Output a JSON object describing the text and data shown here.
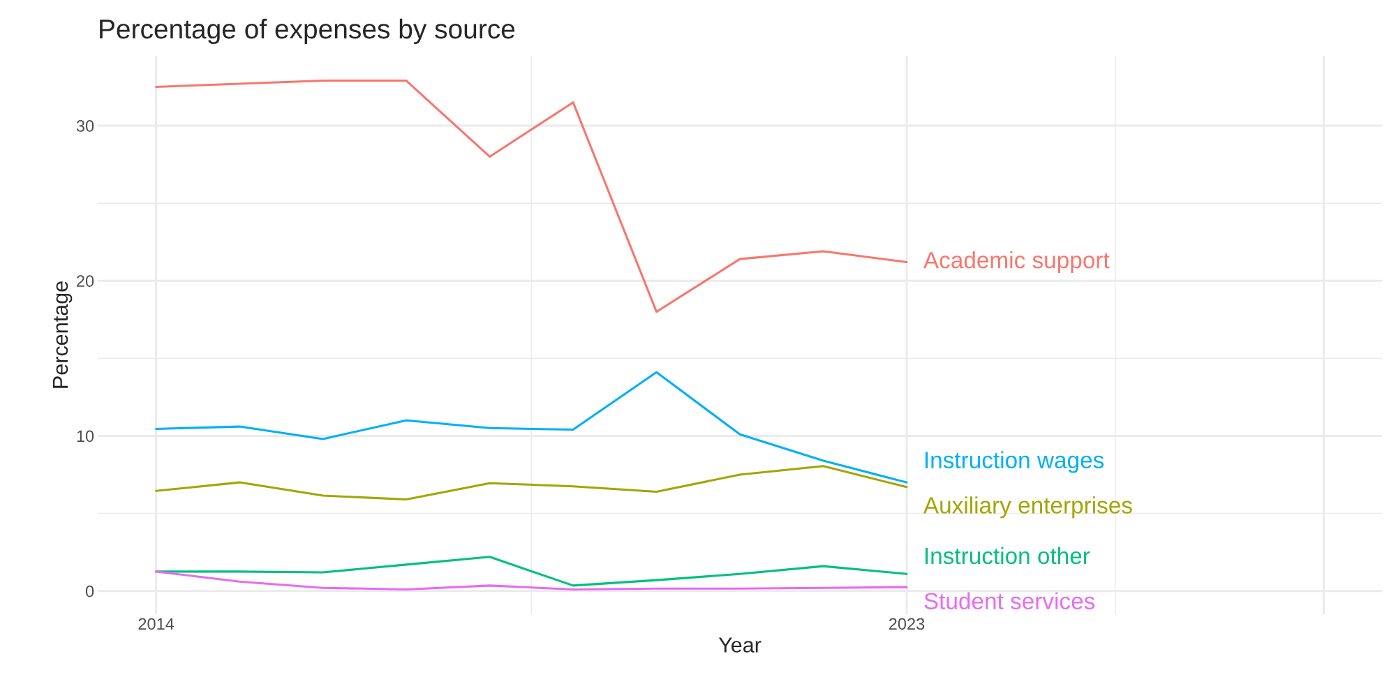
{
  "chart_data": {
    "type": "line",
    "title": "Percentage of expenses by source",
    "xlabel": "Year",
    "ylabel": "Percentage",
    "x": [
      2014,
      2015,
      2016,
      2017,
      2018,
      2019,
      2020,
      2021,
      2022,
      2023
    ],
    "xlim": [
      2013.3,
      2028.7
    ],
    "xticks": [
      2014,
      2023,
      {
        "value": 2028,
        "label": null
      }
    ],
    "ylim": [
      -1.5,
      34.5
    ],
    "yticks": [
      0,
      10,
      20,
      30
    ],
    "grid": true,
    "legend": false,
    "series": [
      {
        "name": "Academic support",
        "color": "#F8766D",
        "values": [
          32.5,
          32.7,
          32.9,
          32.9,
          28.0,
          31.5,
          18.0,
          21.4,
          21.9,
          21.2
        ]
      },
      {
        "name": "Auxiliary enterprises",
        "color": "#A3A500",
        "values": [
          6.45,
          7.0,
          6.15,
          5.9,
          6.95,
          6.75,
          6.4,
          7.5,
          8.05,
          6.7
        ]
      },
      {
        "name": "Instruction other",
        "color": "#00BF7D",
        "values": [
          1.25,
          1.25,
          1.2,
          1.7,
          2.2,
          0.35,
          0.7,
          1.1,
          1.6,
          1.1
        ]
      },
      {
        "name": "Instruction wages",
        "color": "#00B0F6",
        "values": [
          10.45,
          10.6,
          9.8,
          11.0,
          10.5,
          10.4,
          14.1,
          10.1,
          8.4,
          7.0
        ]
      },
      {
        "name": "Student services",
        "color": "#E76BF3",
        "values": [
          1.25,
          0.6,
          0.2,
          0.1,
          0.35,
          0.1,
          0.15,
          0.15,
          0.2,
          0.25
        ]
      }
    ]
  }
}
